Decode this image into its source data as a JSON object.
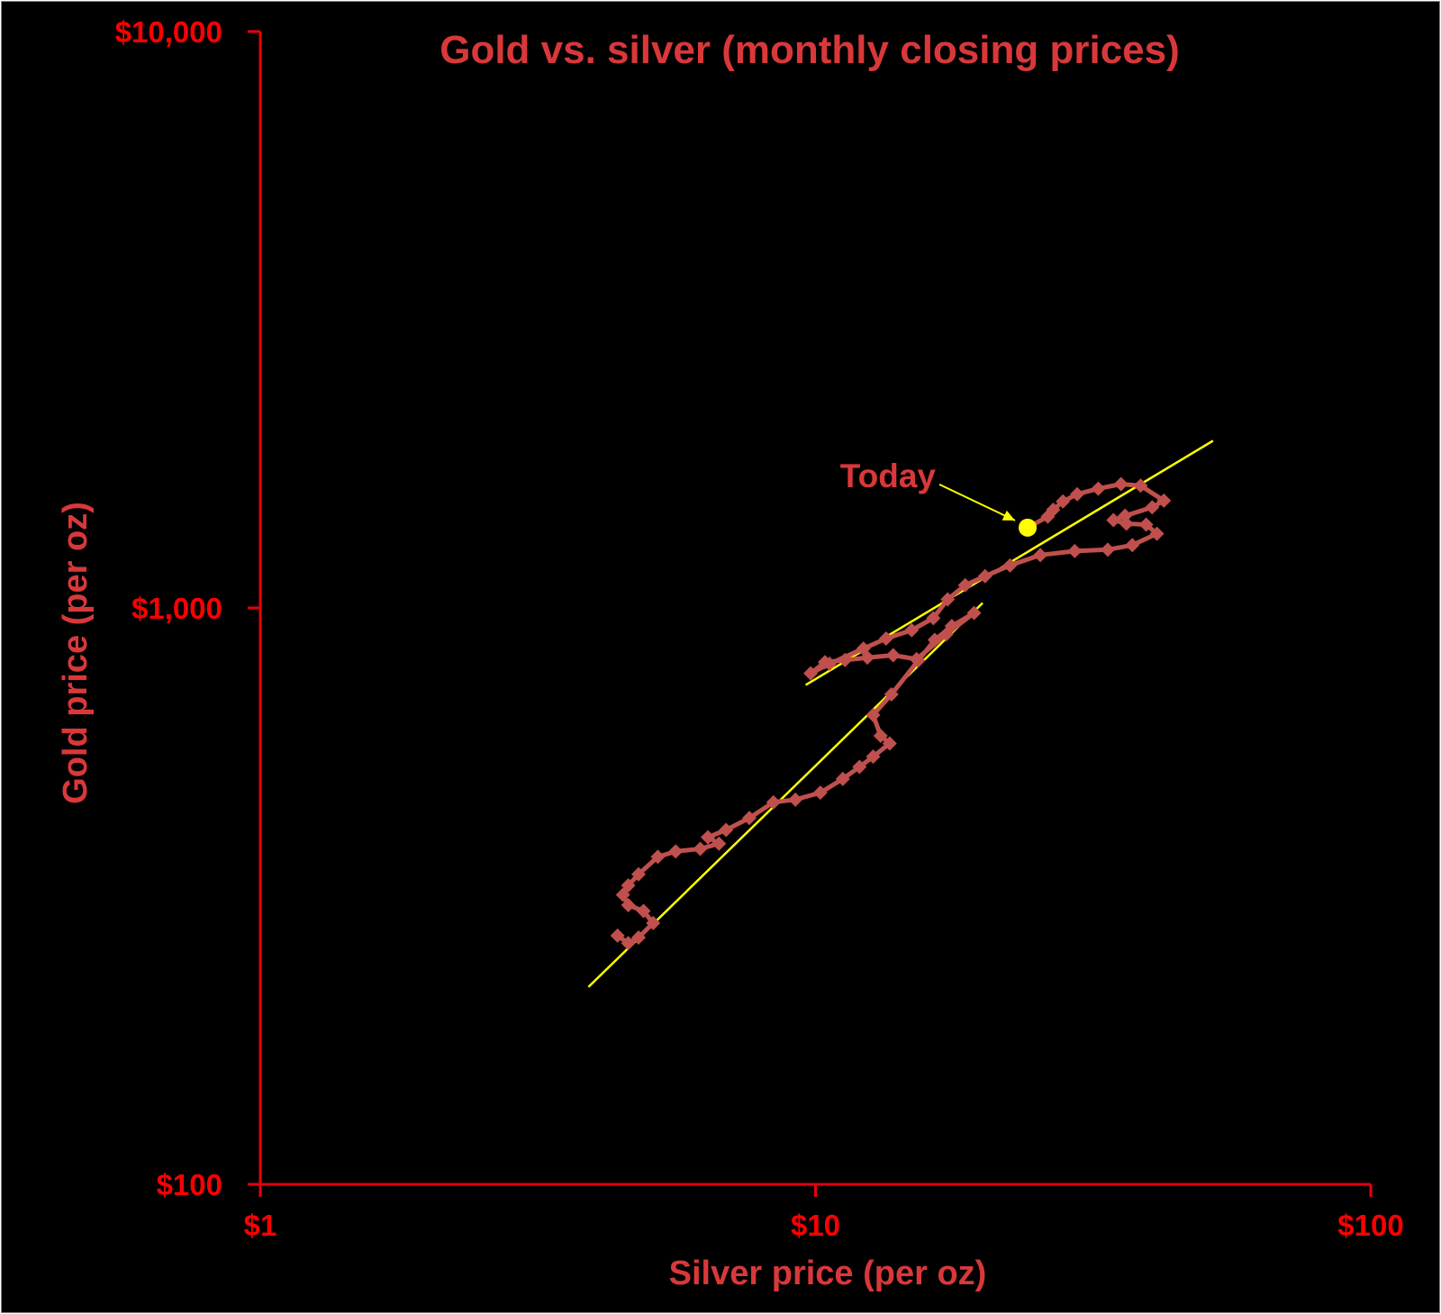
{
  "chart_data": {
    "type": "scatter",
    "title": "Gold vs. silver (monthly closing prices)",
    "xlabel": "Silver price (per oz)",
    "ylabel": "Gold price (per oz)",
    "x_scale": "log",
    "y_scale": "log",
    "xlim": [
      1,
      100
    ],
    "ylim": [
      100,
      10000
    ],
    "x_ticks": [
      {
        "value": 1,
        "label": "$1"
      },
      {
        "value": 10,
        "label": "$10"
      },
      {
        "value": 100,
        "label": "$100"
      }
    ],
    "y_ticks": [
      {
        "value": 100,
        "label": "$100"
      },
      {
        "value": 1000,
        "label": "$1,000"
      },
      {
        "value": 10000,
        "label": "$10,000"
      }
    ],
    "grid": false,
    "legend": "none",
    "colors": {
      "background": "#000000",
      "axis": "#e8000b",
      "tick_labels": "#ff0000",
      "title": "#d9383a",
      "series": "#c0504d",
      "trend": "#ffff00",
      "annotation": "#d9383a"
    },
    "series": [
      {
        "values": [
          [
            4.4,
            270
          ],
          [
            4.6,
            262
          ],
          [
            4.8,
            268
          ],
          [
            5.1,
            284
          ],
          [
            4.9,
            298
          ],
          [
            4.6,
            305
          ],
          [
            4.5,
            318
          ],
          [
            4.6,
            330
          ],
          [
            4.8,
            345
          ],
          [
            5.2,
            370
          ],
          [
            5.6,
            378
          ],
          [
            6.2,
            382
          ],
          [
            6.7,
            390
          ],
          [
            6.4,
            400
          ],
          [
            6.9,
            412
          ],
          [
            7.6,
            432
          ],
          [
            8.4,
            460
          ],
          [
            9.2,
            465
          ],
          [
            10.2,
            478
          ],
          [
            11.2,
            505
          ],
          [
            12.0,
            530
          ],
          [
            12.7,
            552
          ],
          [
            13.6,
            582
          ],
          [
            13.1,
            600
          ],
          [
            12.7,
            652
          ],
          [
            13.7,
            708
          ],
          [
            15.3,
            810
          ],
          [
            16.4,
            880
          ],
          [
            17.6,
            930
          ],
          [
            19.3,
            980
          ],
          [
            17.2,
            900
          ],
          [
            15.2,
            815
          ],
          [
            13.8,
            828
          ],
          [
            12.4,
            820
          ],
          [
            11.3,
            812
          ],
          [
            10.4,
            805
          ],
          [
            9.8,
            770
          ],
          [
            10.6,
            800
          ],
          [
            12.2,
            850
          ],
          [
            13.4,
            885
          ],
          [
            14.9,
            915
          ],
          [
            16.3,
            960
          ],
          [
            17.3,
            1035
          ],
          [
            18.6,
            1095
          ],
          [
            20.2,
            1135
          ],
          [
            22.4,
            1185
          ],
          [
            25.4,
            1235
          ],
          [
            29.3,
            1255
          ],
          [
            33.6,
            1262
          ],
          [
            37.2,
            1285
          ],
          [
            41.2,
            1345
          ],
          [
            39.4,
            1395
          ],
          [
            36.3,
            1400
          ],
          [
            34.4,
            1420
          ],
          [
            36.1,
            1445
          ],
          [
            40.4,
            1495
          ],
          [
            42.4,
            1535
          ],
          [
            38.5,
            1630
          ],
          [
            35.5,
            1640
          ],
          [
            32.3,
            1610
          ],
          [
            29.6,
            1575
          ],
          [
            27.9,
            1530
          ],
          [
            26.8,
            1480
          ],
          [
            26.2,
            1440
          ],
          [
            24.1,
            1378
          ]
        ]
      }
    ],
    "trend_lines": [
      {
        "points": [
          [
            3.9,
            220
          ],
          [
            20.0,
            1020
          ]
        ]
      },
      {
        "points": [
          [
            9.6,
            735
          ],
          [
            52.0,
            1950
          ]
        ]
      }
    ],
    "highlight": {
      "x": 24.1,
      "y": 1378,
      "label": "Today"
    }
  }
}
